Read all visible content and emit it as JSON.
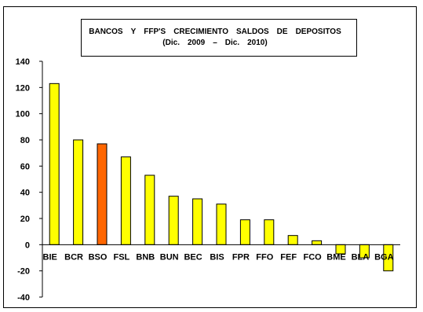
{
  "chart_data": {
    "type": "bar",
    "title": "BANCOS Y FFP'S CRECIMIENTO SALDOS DE DEPOSITOS ",
    "subtitle": "(Dic. 2009 – Dic. 2010) ",
    "categories": [
      "BIE",
      "BCR",
      "BSO",
      "FSL",
      "BNB",
      "BUN",
      "BEC",
      "BIS",
      "FPR",
      "FFO",
      "FEF",
      "FCO",
      "BME",
      "BLA",
      "BGA"
    ],
    "category_labels": [
      "BIE ",
      "BCR ",
      "BSO ",
      "FSL ",
      "BNB ",
      "BUN ",
      "BEC ",
      "BIS ",
      "FPR ",
      "FFO ",
      "FEF ",
      "FCO ",
      "BME ",
      "BLA ",
      "BGA "
    ],
    "values": [
      123,
      80,
      77,
      67,
      53,
      37,
      35,
      31,
      19,
      19,
      7,
      3,
      -7,
      -10,
      -20
    ],
    "ylim": [
      -40,
      140
    ],
    "yticks": [
      -40,
      -20,
      0,
      20,
      40,
      60,
      80,
      100,
      120,
      140
    ],
    "ytick_labels": [
      "-40 ",
      "-20 ",
      "0 ",
      "20 ",
      "40 ",
      "60 ",
      "80 ",
      "100 ",
      "120 ",
      "140 "
    ],
    "highlight_index": 2,
    "colors": {
      "bar": "#ffff00",
      "highlight": "#ff6600",
      "outline": "#000000"
    },
    "grid": false,
    "legend": "none"
  }
}
